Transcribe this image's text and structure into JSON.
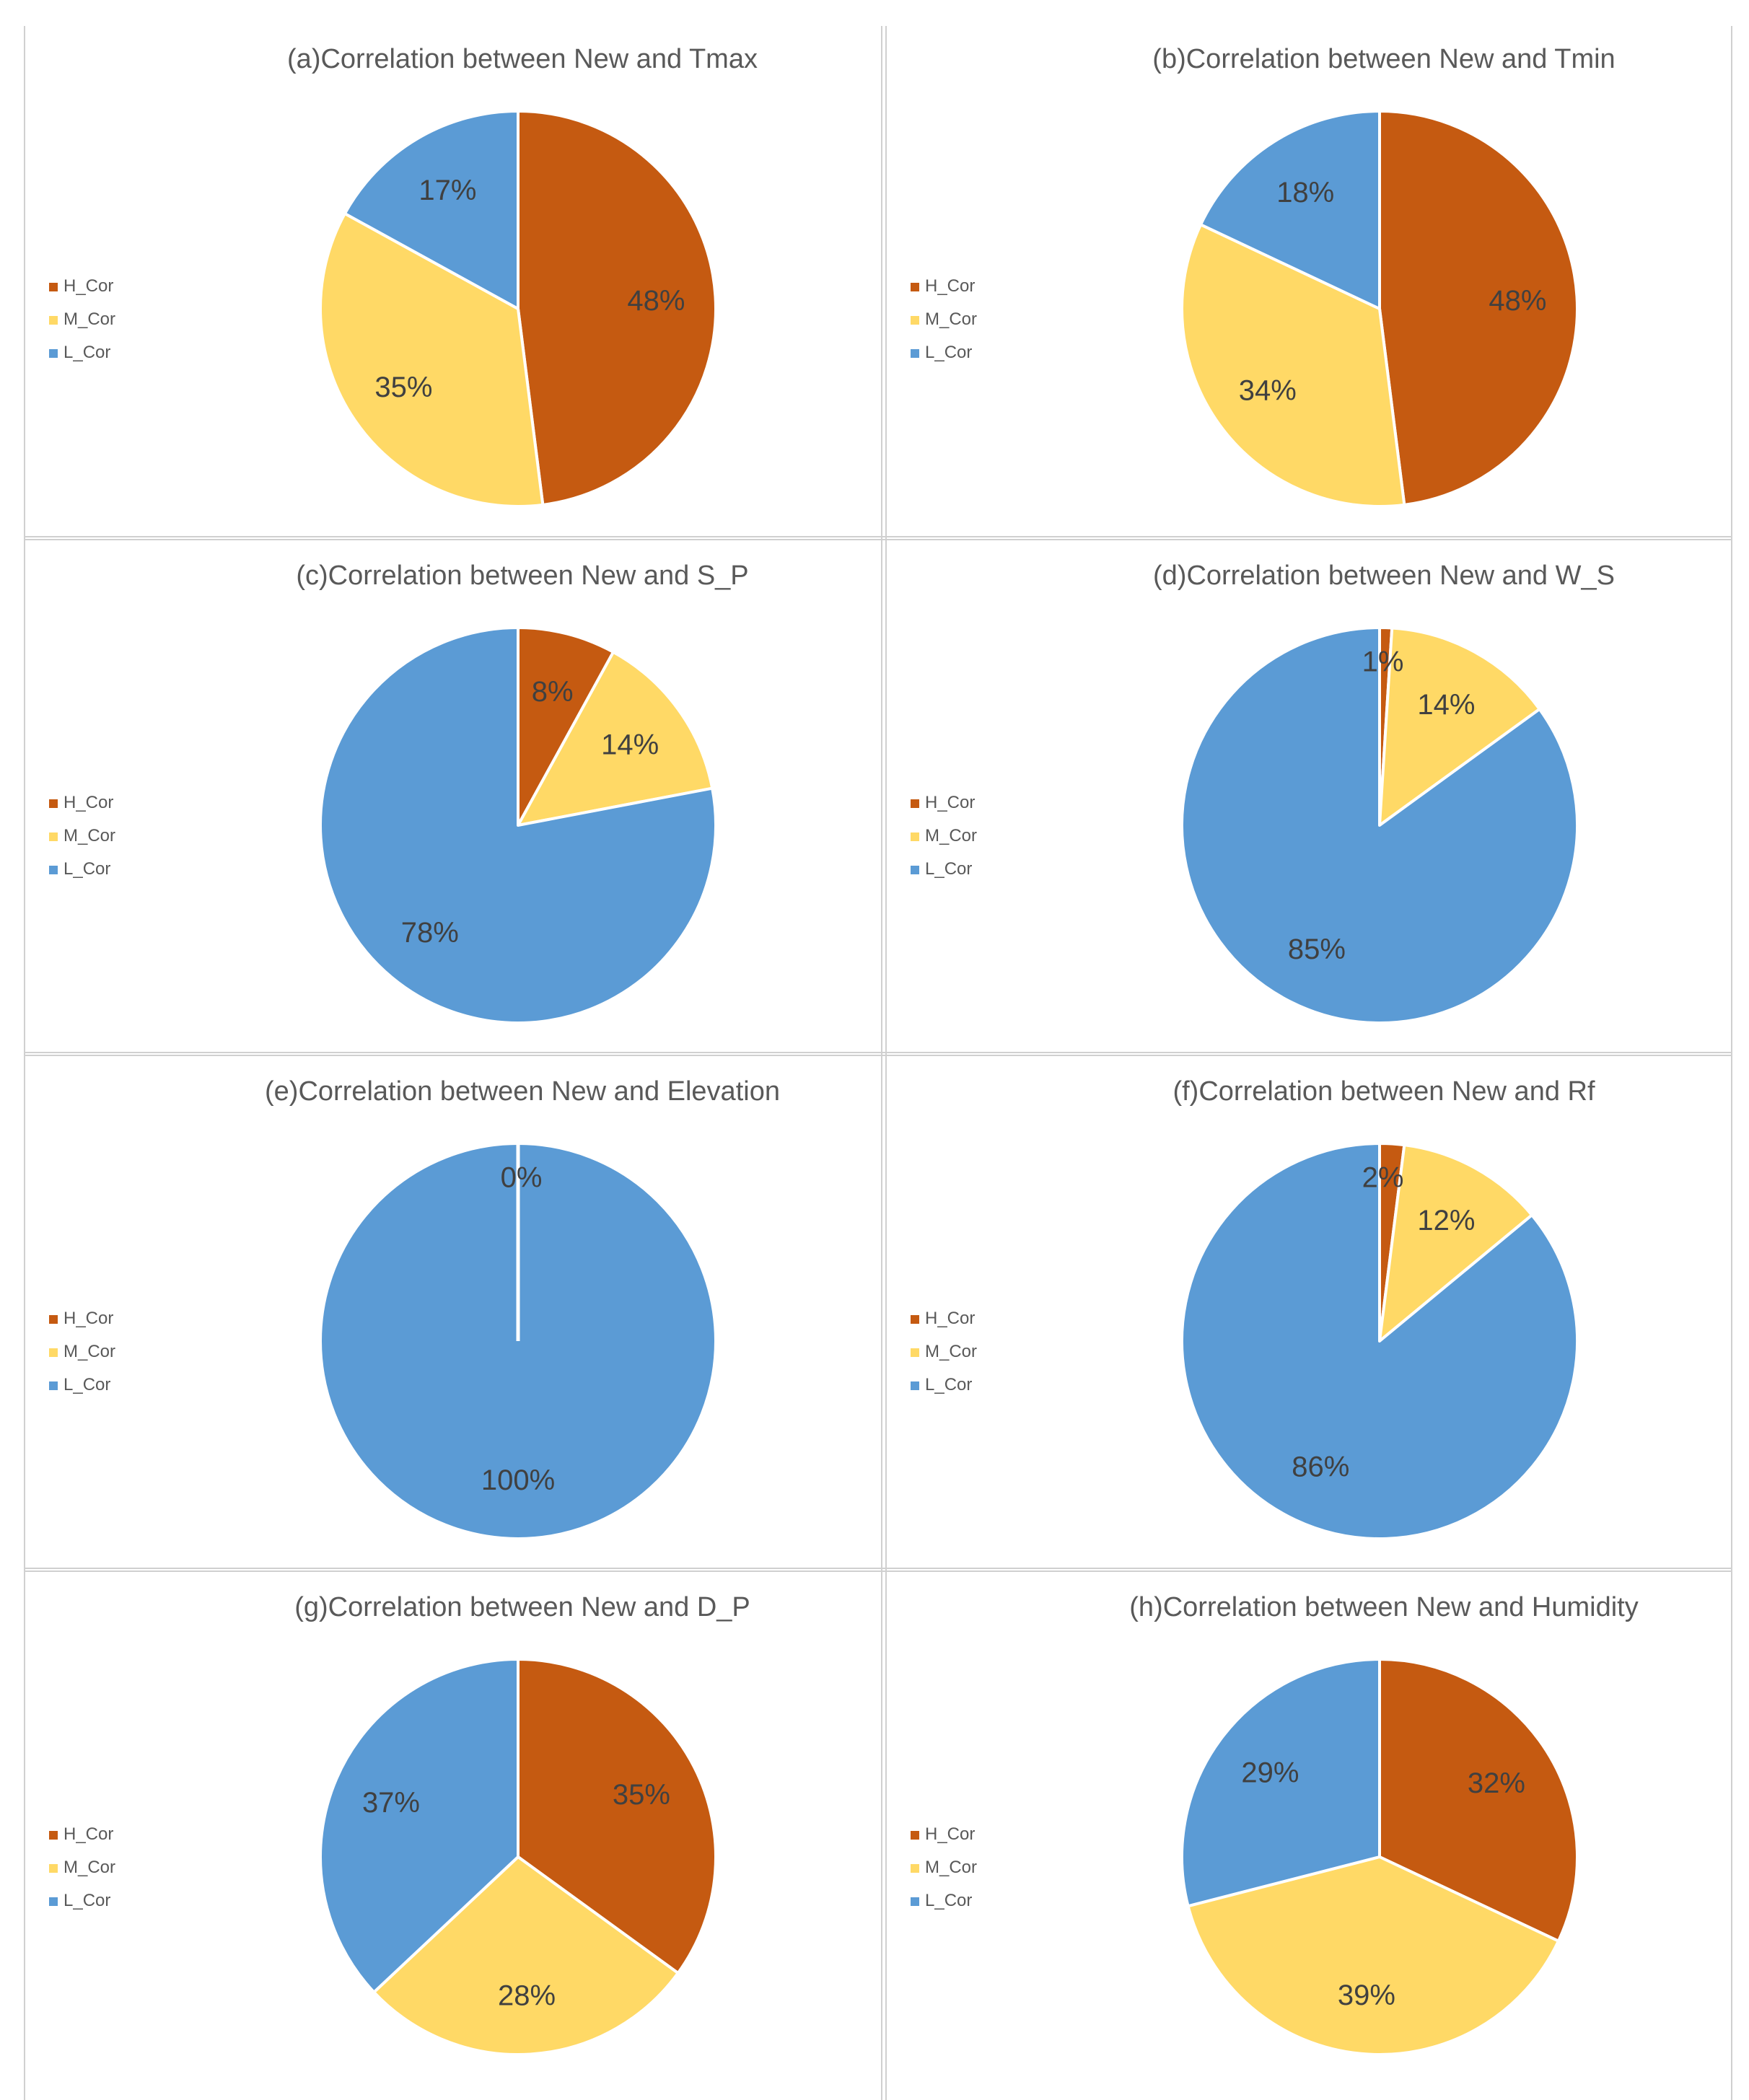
{
  "colors": {
    "H_Cor": "#C55A11",
    "M_Cor": "#FFD966",
    "L_Cor": "#5B9BD5"
  },
  "chart_data": [
    {
      "type": "pie",
      "title": "(a)Correlation between New and Tmax",
      "labels": [
        "H_Cor",
        "M_Cor",
        "L_Cor"
      ],
      "values": [
        48,
        35,
        17
      ],
      "data_labels": [
        "48%",
        "35%",
        "17%"
      ],
      "legend": "left"
    },
    {
      "type": "pie",
      "title": "(b)Correlation between New and Tmin",
      "labels": [
        "H_Cor",
        "M_Cor",
        "L_Cor"
      ],
      "values": [
        48,
        34,
        18
      ],
      "data_labels": [
        "48%",
        "34%",
        "18%"
      ],
      "legend": "left"
    },
    {
      "type": "pie",
      "title": "(c)Correlation between New and S_P",
      "labels": [
        "H_Cor",
        "M_Cor",
        "L_Cor"
      ],
      "values": [
        8,
        14,
        78
      ],
      "data_labels": [
        "8%",
        "14%",
        "78%"
      ],
      "legend": "left"
    },
    {
      "type": "pie",
      "title": "(d)Correlation between New and W_S",
      "labels": [
        "H_Cor",
        "M_Cor",
        "L_Cor"
      ],
      "values": [
        1,
        14,
        85
      ],
      "data_labels": [
        "1%",
        "14%",
        "85%"
      ],
      "legend": "left"
    },
    {
      "type": "pie",
      "title": "(e)Correlation between New and Elevation",
      "labels": [
        "H_Cor",
        "M_Cor",
        "L_Cor"
      ],
      "values": [
        0,
        0,
        100
      ],
      "data_labels": [
        "",
        "0%",
        "100%"
      ],
      "legend": "left"
    },
    {
      "type": "pie",
      "title": "(f)Correlation between New and Rf",
      "labels": [
        "H_Cor",
        "M_Cor",
        "L_Cor"
      ],
      "values": [
        2,
        12,
        86
      ],
      "data_labels": [
        "2%",
        "12%",
        "86%"
      ],
      "legend": "left"
    },
    {
      "type": "pie",
      "title": "(g)Correlation between New and D_P",
      "labels": [
        "H_Cor",
        "M_Cor",
        "L_Cor"
      ],
      "values": [
        35,
        28,
        37
      ],
      "data_labels": [
        "35%",
        "28%",
        "37%"
      ],
      "legend": "left"
    },
    {
      "type": "pie",
      "title": "(h)Correlation between New and Humidity",
      "labels": [
        "H_Cor",
        "M_Cor",
        "L_Cor"
      ],
      "values": [
        32,
        39,
        29
      ],
      "data_labels": [
        "32%",
        "39%",
        "29%"
      ],
      "legend": "left"
    }
  ]
}
